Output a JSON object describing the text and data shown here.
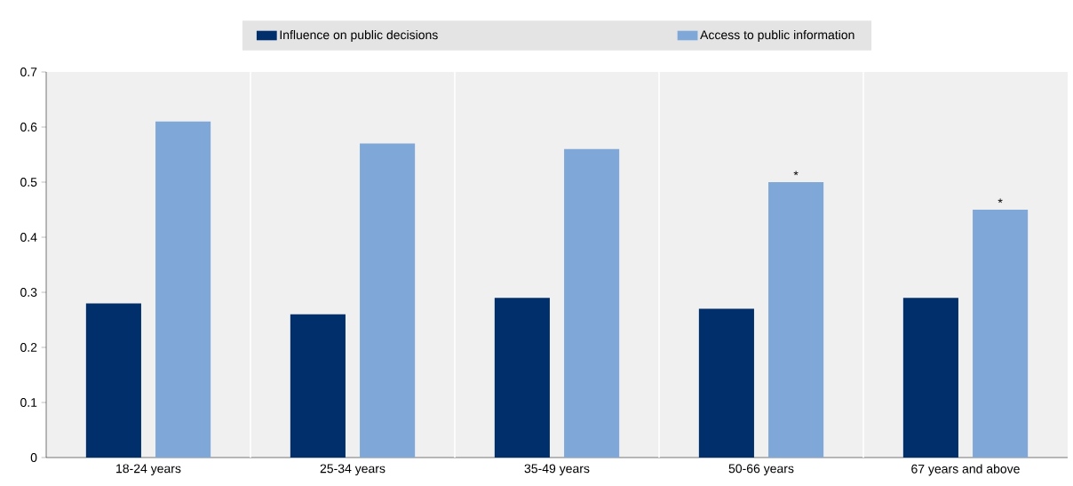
{
  "chart_data": {
    "type": "bar",
    "categories": [
      "18-24 years",
      "25-34 years",
      "35-49 years",
      "50-66 years",
      "67 years and above"
    ],
    "series": [
      {
        "name": "Influence on public decisions",
        "color": "#002f6c",
        "values": [
          0.28,
          0.26,
          0.29,
          0.27,
          0.29
        ]
      },
      {
        "name": "Access to public information",
        "color": "#7fa8d8",
        "values": [
          0.61,
          0.57,
          0.56,
          0.5,
          0.45
        ]
      }
    ],
    "ylim": [
      0,
      0.7
    ],
    "yticks": [
      0,
      0.1,
      0.2,
      0.3,
      0.4,
      0.5,
      0.6,
      0.7
    ],
    "grid": "x",
    "legend": "top",
    "annotations": [
      "*",
      "*"
    ]
  }
}
